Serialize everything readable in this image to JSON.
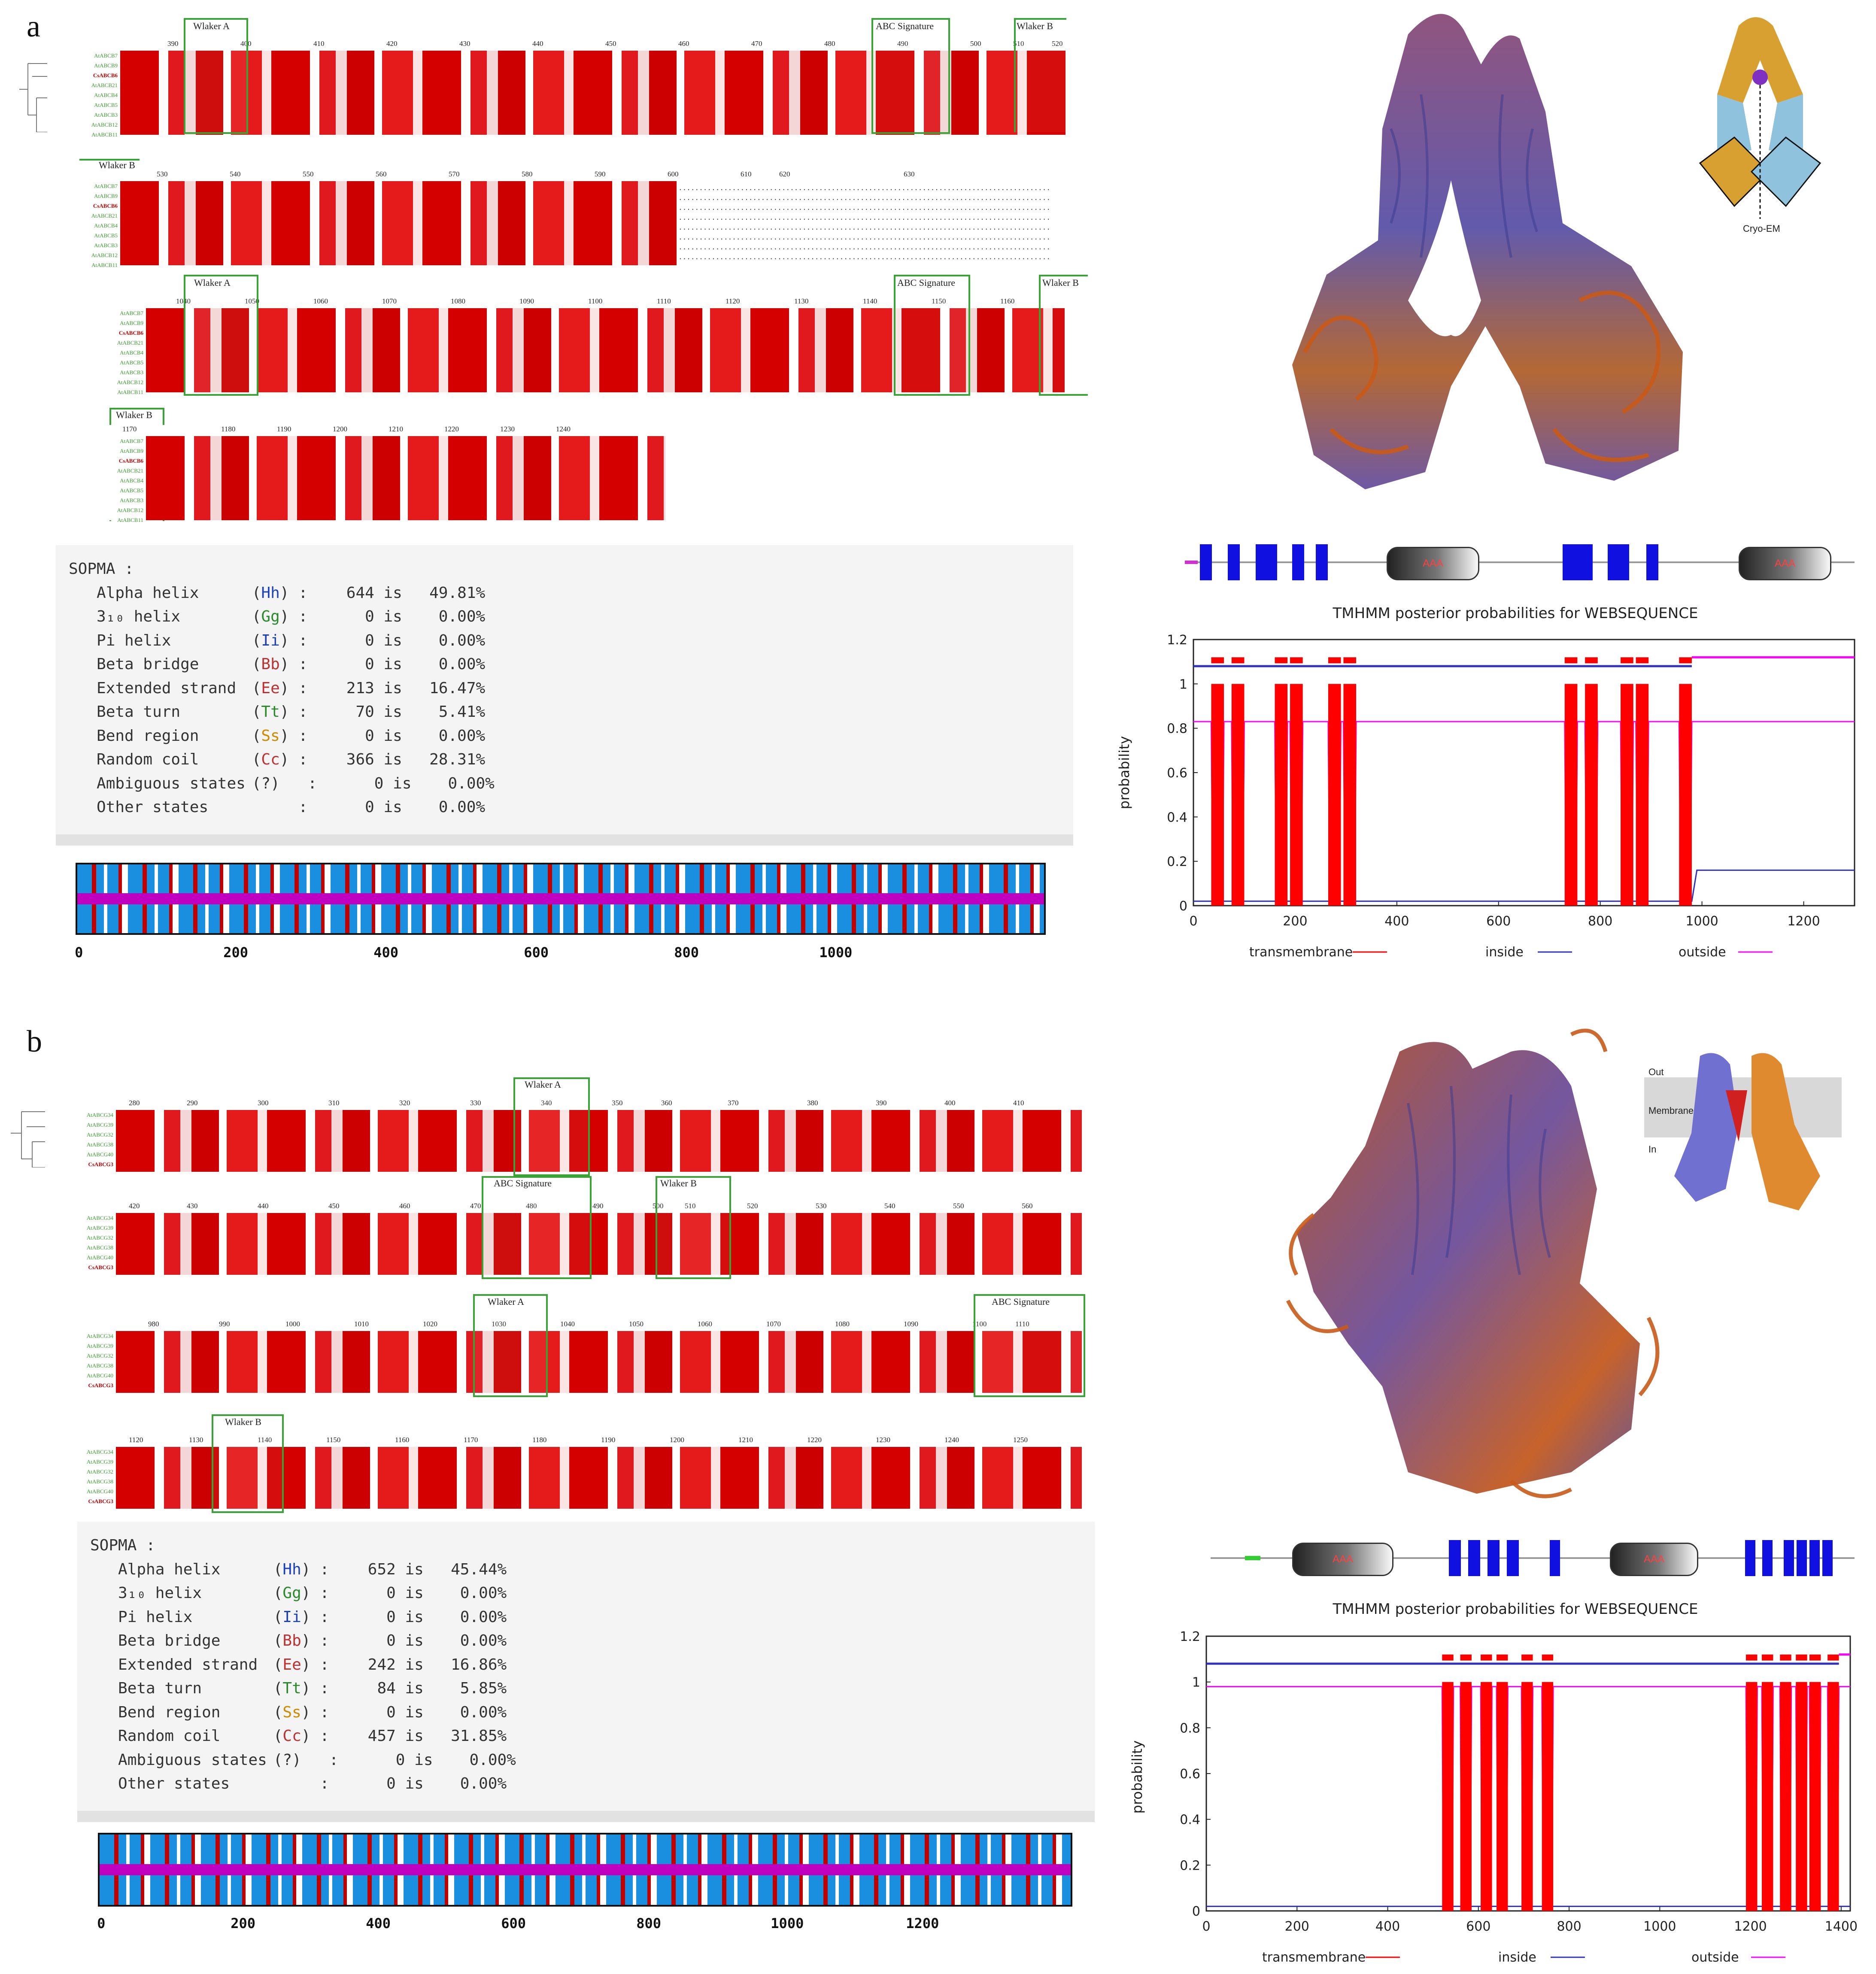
{
  "panels": {
    "a": "a",
    "b": "b"
  },
  "motif_labels": {
    "walker_a": "Wlaker A",
    "walker_b": "Wlaker B",
    "abc_signature": "ABC Signature"
  },
  "names_abcb": [
    "AtABCB7",
    "AtABCB9",
    "CsABCB6",
    "AtABCB21",
    "AtABCB4",
    "AtABCB5",
    "AtABCB3",
    "AtABCB12",
    "AtABCB11"
  ],
  "names_abcg": [
    "AtABCG34",
    "AtABCG39",
    "AtABCG32",
    "AtABCG38",
    "AtABCG40",
    "CsABCG3"
  ],
  "alignment_a": [
    {
      "ticks": [
        "390",
        "400",
        "410",
        "420",
        "430",
        "440",
        "450",
        "460",
        "470",
        "480",
        "490",
        "500",
        "510",
        "520"
      ]
    },
    {
      "ticks": [
        "530",
        "540",
        "550",
        "560",
        "570",
        "580",
        "590",
        "600",
        "610",
        "620",
        "630"
      ]
    },
    {
      "ticks": [
        "1040",
        "1050",
        "1060",
        "1070",
        "1080",
        "1090",
        "1100",
        "1110",
        "1120",
        "1130",
        "1140",
        "1150",
        "1160"
      ]
    },
    {
      "ticks": [
        "1170",
        "1180",
        "1190",
        "1200",
        "1210",
        "1220",
        "1230",
        "1240"
      ]
    }
  ],
  "alignment_b": [
    {
      "ticks": [
        "280",
        "290",
        "300",
        "310",
        "320",
        "330",
        "340",
        "350",
        "360",
        "370",
        "380",
        "390",
        "400",
        "410"
      ]
    },
    {
      "ticks": [
        "420",
        "430",
        "440",
        "450",
        "460",
        "470",
        "480",
        "490",
        "500",
        "510",
        "520",
        "530",
        "540",
        "550",
        "560"
      ]
    },
    {
      "ticks": [
        "980",
        "990",
        "1000",
        "1010",
        "1020",
        "1030",
        "1040",
        "1050",
        "1060",
        "1070",
        "1080",
        "1090",
        "1100",
        "1110"
      ]
    },
    {
      "ticks": [
        "1120",
        "1130",
        "1140",
        "1150",
        "1160",
        "1170",
        "1180",
        "1190",
        "1200",
        "1210",
        "1220",
        "1230",
        "1240",
        "1250"
      ]
    }
  ],
  "sopma_a": {
    "header": "SOPMA :",
    "rows": [
      {
        "name": "Alpha helix",
        "code": "Hh",
        "count": "644",
        "pct": "49.81%"
      },
      {
        "name": "3₁₀ helix",
        "code": "Gg",
        "count": "0",
        "pct": "0.00%"
      },
      {
        "name": "Pi helix",
        "code": "Ii",
        "count": "0",
        "pct": "0.00%"
      },
      {
        "name": "Beta bridge",
        "code": "Bb",
        "count": "0",
        "pct": "0.00%"
      },
      {
        "name": "Extended strand",
        "code": "Ee",
        "count": "213",
        "pct": "16.47%"
      },
      {
        "name": "Beta turn",
        "code": "Tt",
        "count": "70",
        "pct": "5.41%"
      },
      {
        "name": "Bend region",
        "code": "Ss",
        "count": "0",
        "pct": "0.00%"
      },
      {
        "name": "Random coil",
        "code": "Cc",
        "count": "366",
        "pct": "28.31%"
      },
      {
        "name": "Ambiguous states",
        "code": "?",
        "count": "0",
        "pct": "0.00%"
      },
      {
        "name": "Other states",
        "code": "",
        "count": "0",
        "pct": "0.00%"
      }
    ],
    "axis_ticks": [
      "0",
      "200",
      "400",
      "600",
      "800",
      "1000"
    ]
  },
  "sopma_b": {
    "header": "SOPMA :",
    "rows": [
      {
        "name": "Alpha helix",
        "code": "Hh",
        "count": "652",
        "pct": "45.44%"
      },
      {
        "name": "3₁₀ helix",
        "code": "Gg",
        "count": "0",
        "pct": "0.00%"
      },
      {
        "name": "Pi helix",
        "code": "Ii",
        "count": "0",
        "pct": "0.00%"
      },
      {
        "name": "Beta bridge",
        "code": "Bb",
        "count": "0",
        "pct": "0.00%"
      },
      {
        "name": "Extended strand",
        "code": "Ee",
        "count": "242",
        "pct": "16.86%"
      },
      {
        "name": "Beta turn",
        "code": "Tt",
        "count": "84",
        "pct": "5.85%"
      },
      {
        "name": "Bend region",
        "code": "Ss",
        "count": "0",
        "pct": "0.00%"
      },
      {
        "name": "Random coil",
        "code": "Cc",
        "count": "457",
        "pct": "31.85%"
      },
      {
        "name": "Ambiguous states",
        "code": "?",
        "count": "0",
        "pct": "0.00%"
      },
      {
        "name": "Other states",
        "code": "",
        "count": "0",
        "pct": "0.00%"
      }
    ],
    "axis_ticks": [
      "0",
      "200",
      "400",
      "600",
      "800",
      "1000",
      "1200"
    ]
  },
  "insets": {
    "a_label": "Cryo-EM",
    "b_out": "Out",
    "b_membrane": "Membrane",
    "b_in": "In"
  },
  "domain_a": {
    "aaa_label": "AAA"
  },
  "domain_b": {
    "aaa_label": "AAA"
  },
  "colors": {
    "tm": "#ff0000",
    "inside": "#3030c0",
    "outside": "#ff00ff",
    "helix": "#1a8fe0",
    "strand": "#c00000",
    "coil": "#c000c0"
  },
  "chart_data": [
    {
      "type": "line",
      "title": "TMHMM posterior probabilities for WEBSEQUENCE",
      "xlabel": "",
      "ylabel": "probability",
      "xlim": [
        0,
        1300
      ],
      "ylim": [
        0,
        1.2
      ],
      "xticks": [
        0,
        200,
        400,
        600,
        800,
        1000,
        1200
      ],
      "yticks": [
        0,
        0.2,
        0.4,
        0.6,
        0.8,
        1,
        1.2
      ],
      "legend": [
        "transmembrane",
        "inside",
        "outside"
      ],
      "tm_segments": [
        [
          35,
          60
        ],
        [
          75,
          100
        ],
        [
          160,
          185
        ],
        [
          190,
          215
        ],
        [
          265,
          290
        ],
        [
          295,
          320
        ],
        [
          730,
          755
        ],
        [
          770,
          795
        ],
        [
          840,
          865
        ],
        [
          870,
          895
        ],
        [
          955,
          980
        ]
      ],
      "outside_level": 0.83,
      "inside_level_end": 0.16
    },
    {
      "type": "line",
      "title": "TMHMM posterior probabilities for WEBSEQUENCE",
      "xlabel": "",
      "ylabel": "probability",
      "xlim": [
        0,
        1420
      ],
      "ylim": [
        0,
        1.2
      ],
      "xticks": [
        0,
        200,
        400,
        600,
        800,
        1000,
        1200,
        1400
      ],
      "yticks": [
        0,
        0.2,
        0.4,
        0.6,
        0.8,
        1,
        1.2
      ],
      "legend": [
        "transmembrane",
        "inside",
        "outside"
      ],
      "tm_segments": [
        [
          520,
          545
        ],
        [
          560,
          585
        ],
        [
          605,
          630
        ],
        [
          640,
          665
        ],
        [
          695,
          720
        ],
        [
          740,
          765
        ],
        [
          1190,
          1215
        ],
        [
          1225,
          1250
        ],
        [
          1265,
          1290
        ],
        [
          1300,
          1325
        ],
        [
          1330,
          1355
        ],
        [
          1370,
          1395
        ]
      ],
      "outside_level": 0.98,
      "inside_level_end": 0.02
    }
  ]
}
